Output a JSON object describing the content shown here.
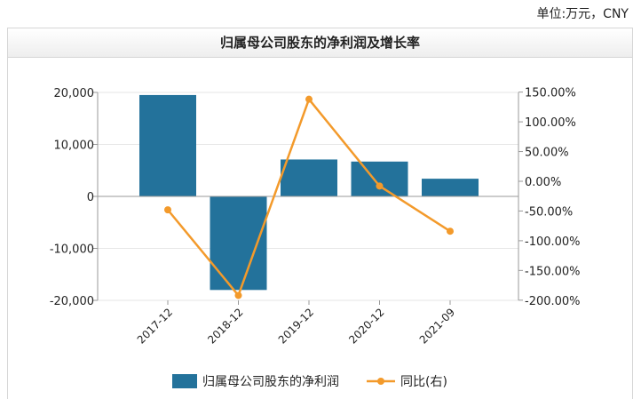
{
  "unit_label": "单位:万元，CNY",
  "title": "归属母公司股东的净利润及增长率",
  "chart_data": {
    "type": "bar",
    "categories": [
      "2017-12",
      "2018-12",
      "2019-12",
      "2020-12",
      "2021-09"
    ],
    "series": [
      {
        "name": "归属母公司股东的净利润",
        "type": "bar",
        "axis": "left",
        "color": "#23729b",
        "values": [
          19500,
          -18000,
          7100,
          6700,
          3400
        ]
      },
      {
        "name": "同比(右)",
        "type": "line",
        "axis": "right",
        "color": "#f39a2b",
        "values": [
          -48,
          -192,
          138,
          -8,
          -84
        ]
      }
    ],
    "y_left": {
      "min": -20000,
      "max": 20000,
      "ticks": [
        "-20,000",
        "-10,000",
        "0",
        "10,000",
        "20,000"
      ]
    },
    "y_right": {
      "min": -200,
      "max": 150,
      "ticks": [
        "-200.00%",
        "-150.00%",
        "-100.00%",
        "-50.00%",
        "0.00%",
        "50.00%",
        "100.00%",
        "150.00%"
      ]
    },
    "legend_position": "bottom"
  }
}
